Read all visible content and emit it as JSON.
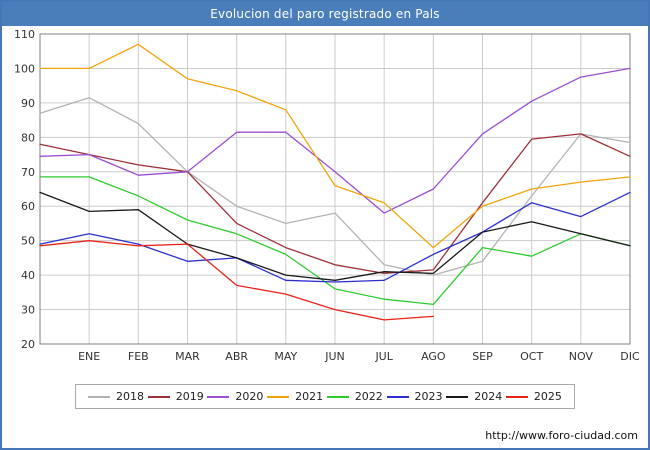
{
  "title": "Evolucion del paro registrado en Pals",
  "footer": {
    "url": "http://www.foro-ciudad.com"
  },
  "colors": {
    "frame": "#4576b5",
    "titlebar_bg": "#4a7ebb",
    "titlebar_text": "#ffffff",
    "grid": "#cccccc",
    "plot_border": "#808080",
    "axis_text": "#333333"
  },
  "chart_data": {
    "type": "line",
    "title": "Evolucion del paro registrado en Pals",
    "xlabel": "",
    "ylabel": "",
    "ylim": [
      20,
      110
    ],
    "y_ticks": [
      20,
      30,
      40,
      50,
      60,
      70,
      80,
      90,
      100,
      110
    ],
    "x_tick_labels": [
      "ENE",
      "FEB",
      "MAR",
      "ABR",
      "MAY",
      "JUN",
      "JUL",
      "AGO",
      "SEP",
      "OCT",
      "NOV",
      "DIC"
    ],
    "x_layout_note": "13 points per full series: index 0 at plot left edge, indices 1-12 under the month labels",
    "grid": true,
    "legend_position": "bottom",
    "series": [
      {
        "name": "2018",
        "color": "#b3b3b3",
        "values": [
          87,
          91.5,
          84,
          70,
          60,
          55,
          58,
          43,
          40,
          44,
          63,
          81,
          78.5
        ]
      },
      {
        "name": "2019",
        "color": "#9e3039",
        "values": [
          78,
          75,
          72,
          70,
          55,
          48,
          43,
          40.5,
          41.5,
          61,
          79.5,
          81,
          74.5
        ]
      },
      {
        "name": "2020",
        "color": "#9a4fd6",
        "values": [
          74.5,
          75,
          69,
          70,
          81.5,
          81.5,
          70,
          58,
          65,
          81,
          90.5,
          97.5,
          100
        ]
      },
      {
        "name": "2021",
        "color": "#f2a50a",
        "values": [
          100,
          100,
          107,
          97,
          93.5,
          88,
          66,
          61,
          48,
          60,
          65,
          67,
          68.5
        ]
      },
      {
        "name": "2022",
        "color": "#2fcc2f",
        "values": [
          68.5,
          68.5,
          63,
          56,
          52,
          46,
          36,
          33,
          31.5,
          48,
          45.5,
          52,
          48.5
        ]
      },
      {
        "name": "2023",
        "color": "#2f2fd0",
        "values": [
          49,
          52,
          49,
          44,
          45,
          38.5,
          38,
          38.5,
          46,
          52.5,
          61,
          57,
          64
        ]
      },
      {
        "name": "2024",
        "color": "#1a1a1a",
        "values": [
          64,
          58.5,
          59,
          49,
          45,
          40,
          38.5,
          41,
          40.5,
          52.5,
          55.5,
          52,
          48.5
        ]
      },
      {
        "name": "2025",
        "color": "#e8231a",
        "values": [
          48.5,
          50,
          48.5,
          49,
          37,
          34.5,
          30,
          27,
          28
        ]
      }
    ]
  }
}
